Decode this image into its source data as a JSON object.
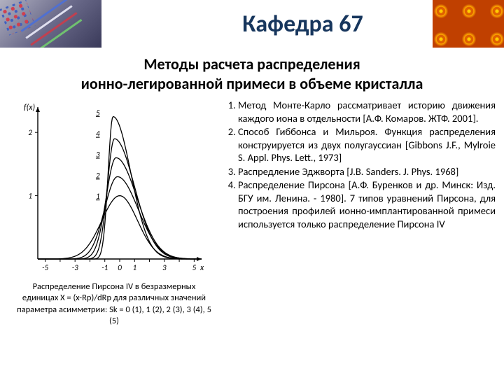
{
  "header_title": "Кафедра 67",
  "subtitle_line1": "Методы расчета распределения",
  "subtitle_line2": "ионно-легированной примеси в объеме кристалла",
  "list": {
    "item1": "Метод Монте-Карло рассматривает историю движения каждого иона в отдельности [А.Ф. Комаров. ЖТФ. 2001].",
    "item2": "Способ Гиббонса и Мильроя. Функция распределения конструируется из двух полугауссиан [Gibbons J.F., Mylroie S. Appl. Phys. Lett., 1973]",
    "item3": "Распредление Эджворта [J.B. Sanders. J. Phys. 1968]",
    "item4": "Распределение Пирсона [А.Ф. Буренков и др. Минск: Изд. БГУ им. Ленина. - 1980].     7 типов уравнений Пирсона, для построения профилей ионно-имплантированной примеси используется только распределение Пирсона IV"
  },
  "caption": "Распределение Пирсона IV в безразмерных единицах X = (x-Rp)/dRp для различных значений параметра асимметрии: Sk = 0 (1), 1 (2), 2 (3), 3 (4), 5 (5)",
  "chart": {
    "type": "line",
    "background": "#ffffff",
    "axis_color": "#000000",
    "curve_color": "#000000",
    "y_label": "f(x)",
    "x_label": "x",
    "x_ticks": [
      -5,
      -4,
      -3,
      -2,
      -1,
      0,
      1,
      2,
      3,
      4,
      5
    ],
    "x_tick_labels_shown": [
      "-5",
      "",
      "-3",
      "",
      "-1",
      "0",
      "1",
      "",
      "3",
      "",
      "5"
    ],
    "y_ticks": [
      0,
      1,
      2
    ],
    "curve_labels": [
      "1",
      "2",
      "3",
      "4",
      "5"
    ],
    "label_fontsize": 11,
    "xlim": [
      -5.5,
      5.5
    ],
    "ylim": [
      0,
      2.4
    ],
    "curves": [
      {
        "name": "1",
        "peak_x": 0,
        "peak_y": 1.0,
        "width": 1.2,
        "skew": 0
      },
      {
        "name": "2",
        "peak_x": -0.15,
        "peak_y": 1.3,
        "width": 1.0,
        "skew": 0.3
      },
      {
        "name": "3",
        "peak_x": -0.25,
        "peak_y": 1.6,
        "width": 0.85,
        "skew": 0.5
      },
      {
        "name": "4",
        "peak_x": -0.35,
        "peak_y": 1.9,
        "width": 0.7,
        "skew": 0.7
      },
      {
        "name": "5",
        "peak_x": -0.45,
        "peak_y": 2.25,
        "width": 0.55,
        "skew": 0.9
      }
    ]
  }
}
